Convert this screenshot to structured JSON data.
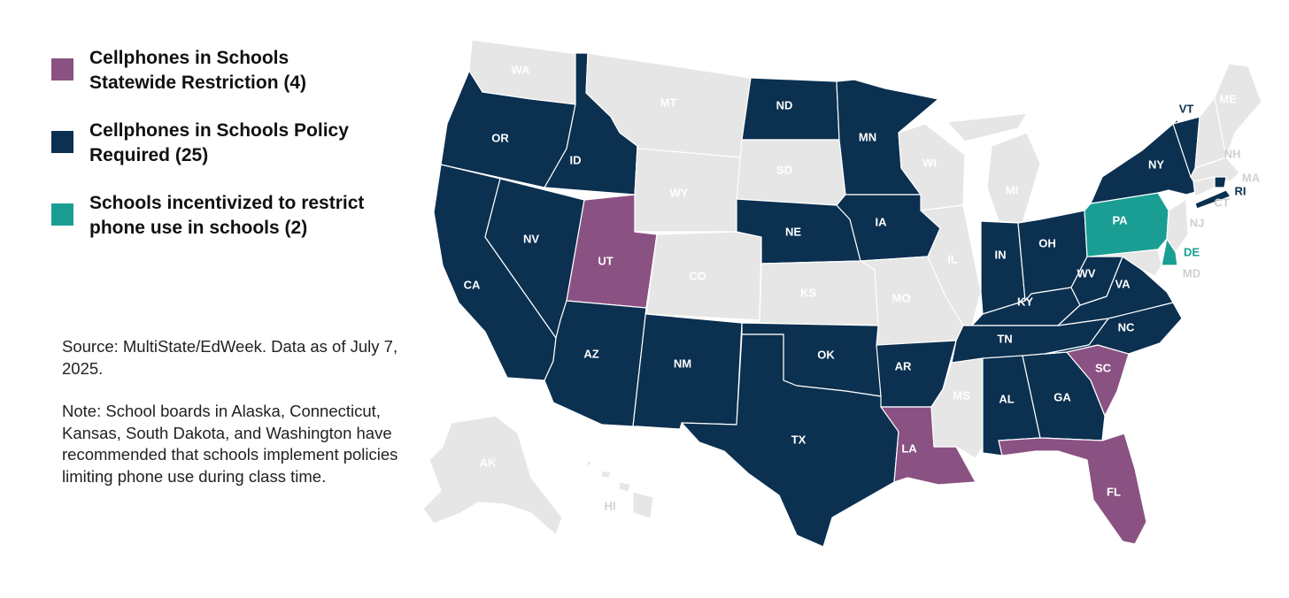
{
  "legend": {
    "items": [
      {
        "id": "restriction",
        "label": "Cellphones in Schools\nStatewide Restriction (4)",
        "color": "#8a5282"
      },
      {
        "id": "policy",
        "label": "Cellphones in Schools Policy\nRequired (25)",
        "color": "#0b3050"
      },
      {
        "id": "incentive",
        "label": "Schools incentivized to restrict\nphone use in schools (2)",
        "color": "#1a9e94"
      }
    ]
  },
  "notes": {
    "source": "Source: MultiState/EdWeek. Data as of July 7, 2025.",
    "note": "Note: School boards in Alaska, Connecticut, Kansas, South Dakota, and Washington have recommended that schools implement policies limiting phone use during class time."
  },
  "map": {
    "colors": {
      "none": "#e6e6e6",
      "restriction": "#8a5282",
      "policy": "#0b3050",
      "incentive": "#1a9e94",
      "label_dark": "#ffffff",
      "label_light": "#ffffff",
      "label_outside_policy": "#0b3050",
      "label_outside_none": "#d0d0d0",
      "label_outside_incentive": "#1a9e94"
    },
    "states": [
      {
        "abbr": "WA",
        "category": "none"
      },
      {
        "abbr": "OR",
        "category": "policy"
      },
      {
        "abbr": "CA",
        "category": "policy"
      },
      {
        "abbr": "ID",
        "category": "policy"
      },
      {
        "abbr": "NV",
        "category": "policy"
      },
      {
        "abbr": "UT",
        "category": "restriction"
      },
      {
        "abbr": "AZ",
        "category": "policy"
      },
      {
        "abbr": "MT",
        "category": "none"
      },
      {
        "abbr": "WY",
        "category": "none"
      },
      {
        "abbr": "CO",
        "category": "none"
      },
      {
        "abbr": "NM",
        "category": "policy"
      },
      {
        "abbr": "ND",
        "category": "policy"
      },
      {
        "abbr": "SD",
        "category": "none"
      },
      {
        "abbr": "NE",
        "category": "policy"
      },
      {
        "abbr": "KS",
        "category": "none"
      },
      {
        "abbr": "OK",
        "category": "policy"
      },
      {
        "abbr": "TX",
        "category": "policy"
      },
      {
        "abbr": "MN",
        "category": "policy"
      },
      {
        "abbr": "IA",
        "category": "policy"
      },
      {
        "abbr": "MO",
        "category": "none"
      },
      {
        "abbr": "AR",
        "category": "policy"
      },
      {
        "abbr": "LA",
        "category": "restriction"
      },
      {
        "abbr": "WI",
        "category": "none"
      },
      {
        "abbr": "IL",
        "category": "none"
      },
      {
        "abbr": "MI",
        "category": "none"
      },
      {
        "abbr": "IN",
        "category": "policy"
      },
      {
        "abbr": "OH",
        "category": "policy"
      },
      {
        "abbr": "KY",
        "category": "policy"
      },
      {
        "abbr": "TN",
        "category": "policy"
      },
      {
        "abbr": "MS",
        "category": "none"
      },
      {
        "abbr": "AL",
        "category": "policy"
      },
      {
        "abbr": "GA",
        "category": "policy"
      },
      {
        "abbr": "FL",
        "category": "restriction"
      },
      {
        "abbr": "SC",
        "category": "restriction"
      },
      {
        "abbr": "NC",
        "category": "policy"
      },
      {
        "abbr": "VA",
        "category": "policy"
      },
      {
        "abbr": "WV",
        "category": "policy"
      },
      {
        "abbr": "PA",
        "category": "incentive"
      },
      {
        "abbr": "NY",
        "category": "policy"
      },
      {
        "abbr": "VT",
        "category": "policy"
      },
      {
        "abbr": "NH",
        "category": "none"
      },
      {
        "abbr": "ME",
        "category": "none"
      },
      {
        "abbr": "MA",
        "category": "none"
      },
      {
        "abbr": "RI",
        "category": "policy"
      },
      {
        "abbr": "CT",
        "category": "none"
      },
      {
        "abbr": "NJ",
        "category": "none"
      },
      {
        "abbr": "DE",
        "category": "incentive"
      },
      {
        "abbr": "MD",
        "category": "none"
      },
      {
        "abbr": "AK",
        "category": "none"
      },
      {
        "abbr": "HI",
        "category": "none"
      }
    ]
  }
}
